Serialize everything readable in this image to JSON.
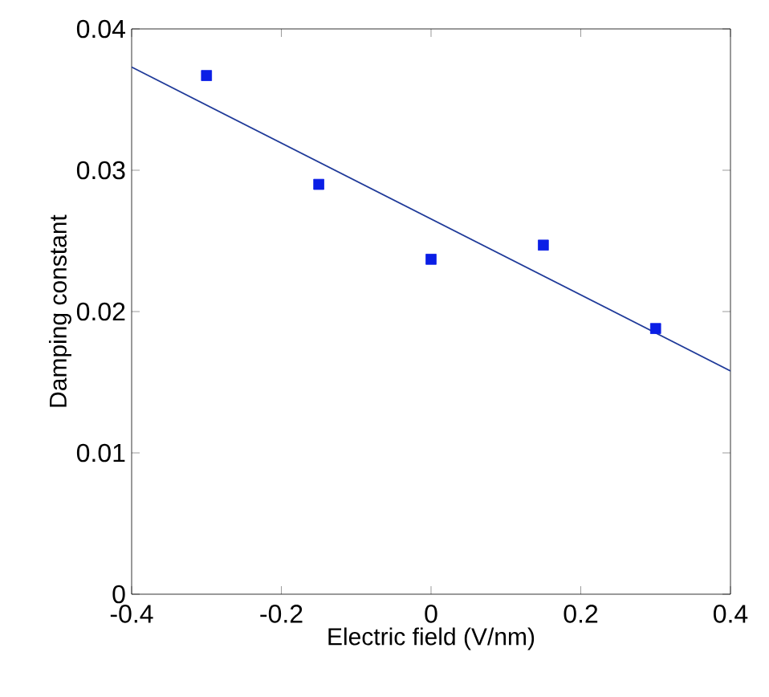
{
  "chart_data": {
    "type": "scatter",
    "xlabel": "Electric field (V/nm)",
    "ylabel": "Damping constant",
    "xlim": [
      -0.4,
      0.4
    ],
    "ylim": [
      0,
      0.04
    ],
    "xticks": [
      -0.4,
      -0.2,
      0,
      0.2,
      0.4
    ],
    "yticks": [
      0,
      0.01,
      0.02,
      0.03,
      0.04
    ],
    "grid": false,
    "series": [
      {
        "marker": "square",
        "color": "#0a1ee6",
        "x": [
          -0.3,
          -0.15,
          0,
          0.15,
          0.3
        ],
        "values": [
          0.0367,
          0.029,
          0.0237,
          0.0247,
          0.0188
        ]
      },
      {
        "type": "line",
        "color": "#1f3a99",
        "x": [
          -0.4,
          0.4
        ],
        "values": [
          0.0373,
          0.0158
        ]
      }
    ]
  }
}
